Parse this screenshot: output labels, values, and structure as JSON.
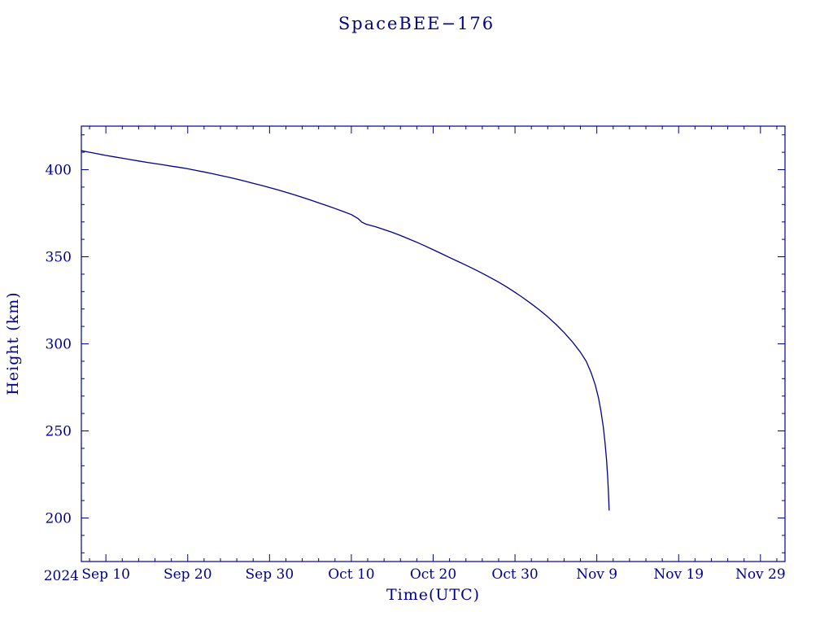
{
  "title": "SpaceBEE−176",
  "axes": {
    "x_label": "Time(UTC)",
    "y_label": "Height (km)",
    "year_label": "2024"
  },
  "colors": {
    "accent": "#00008b",
    "background": "#ffffff",
    "line": "#00008b"
  },
  "chart_data": {
    "type": "line",
    "title": "SpaceBEE−176",
    "xlabel": "Time(UTC)",
    "ylabel": "Height (km)",
    "x_unit": "days since 2024 Sep 7 00:00 UTC",
    "xlim": [
      0,
      86
    ],
    "ylim": [
      175,
      425
    ],
    "grid": false,
    "legend": "none",
    "line_color": "#00008b",
    "x_ticks": [
      {
        "value": 3,
        "label": "Sep 10"
      },
      {
        "value": 13,
        "label": "Sep 20"
      },
      {
        "value": 23,
        "label": "Sep 30"
      },
      {
        "value": 33,
        "label": "Oct 10"
      },
      {
        "value": 43,
        "label": "Oct 20"
      },
      {
        "value": 53,
        "label": "Oct 30"
      },
      {
        "value": 63,
        "label": "Nov 9"
      },
      {
        "value": 73,
        "label": "Nov 19"
      },
      {
        "value": 83,
        "label": "Nov 29"
      }
    ],
    "y_ticks": [
      {
        "value": 200,
        "label": "200"
      },
      {
        "value": 250,
        "label": "250"
      },
      {
        "value": 300,
        "label": "300"
      },
      {
        "value": 350,
        "label": "350"
      },
      {
        "value": 400,
        "label": "400"
      }
    ],
    "x_minor_step": 2,
    "y_minor_step": 10,
    "series": [
      {
        "name": "height_km",
        "points": [
          [
            0,
            410.9
          ],
          [
            1,
            410.0
          ],
          [
            2,
            409.1
          ],
          [
            3,
            408.2
          ],
          [
            4,
            407.4
          ],
          [
            5,
            406.6
          ],
          [
            6,
            405.8
          ],
          [
            7,
            405.0
          ],
          [
            8,
            404.2
          ],
          [
            9,
            403.5
          ],
          [
            10,
            402.8
          ],
          [
            11,
            402.0
          ],
          [
            12,
            401.3
          ],
          [
            13,
            400.5
          ],
          [
            14,
            399.6
          ],
          [
            15,
            398.7
          ],
          [
            16,
            397.7
          ],
          [
            17,
            396.7
          ],
          [
            18,
            395.7
          ],
          [
            19,
            394.6
          ],
          [
            20,
            393.4
          ],
          [
            21,
            392.2
          ],
          [
            22,
            391.0
          ],
          [
            23,
            389.7
          ],
          [
            24,
            388.4
          ],
          [
            25,
            387.0
          ],
          [
            26,
            385.6
          ],
          [
            27,
            384.1
          ],
          [
            28,
            382.6
          ],
          [
            29,
            381.0
          ],
          [
            30,
            379.4
          ],
          [
            31,
            377.7
          ],
          [
            32,
            376.0
          ],
          [
            33,
            374.2
          ],
          [
            33.8,
            372.0
          ],
          [
            34.3,
            369.8
          ],
          [
            34.8,
            368.7
          ],
          [
            36,
            367.2
          ],
          [
            37,
            365.6
          ],
          [
            38,
            364.0
          ],
          [
            39,
            362.2
          ],
          [
            40,
            360.3
          ],
          [
            41,
            358.3
          ],
          [
            42,
            356.2
          ],
          [
            43,
            354.0
          ],
          [
            44,
            351.8
          ],
          [
            45,
            349.6
          ],
          [
            46,
            347.4
          ],
          [
            47,
            345.2
          ],
          [
            48,
            342.9
          ],
          [
            49,
            340.5
          ],
          [
            50,
            338.0
          ],
          [
            51,
            335.4
          ],
          [
            52,
            332.6
          ],
          [
            53,
            329.6
          ],
          [
            54,
            326.4
          ],
          [
            55,
            323.0
          ],
          [
            56,
            319.4
          ],
          [
            57,
            315.5
          ],
          [
            58,
            311.2
          ],
          [
            59,
            306.5
          ],
          [
            60,
            301.2
          ],
          [
            61,
            295.2
          ],
          [
            61.7,
            290.0
          ],
          [
            62.3,
            283.5
          ],
          [
            62.8,
            276.5
          ],
          [
            63.2,
            269.0
          ],
          [
            63.5,
            261.5
          ],
          [
            63.8,
            252.0
          ],
          [
            64.0,
            243.5
          ],
          [
            64.2,
            233.0
          ],
          [
            64.35,
            222.0
          ],
          [
            64.45,
            212.0
          ],
          [
            64.5,
            204.5
          ]
        ]
      }
    ]
  }
}
